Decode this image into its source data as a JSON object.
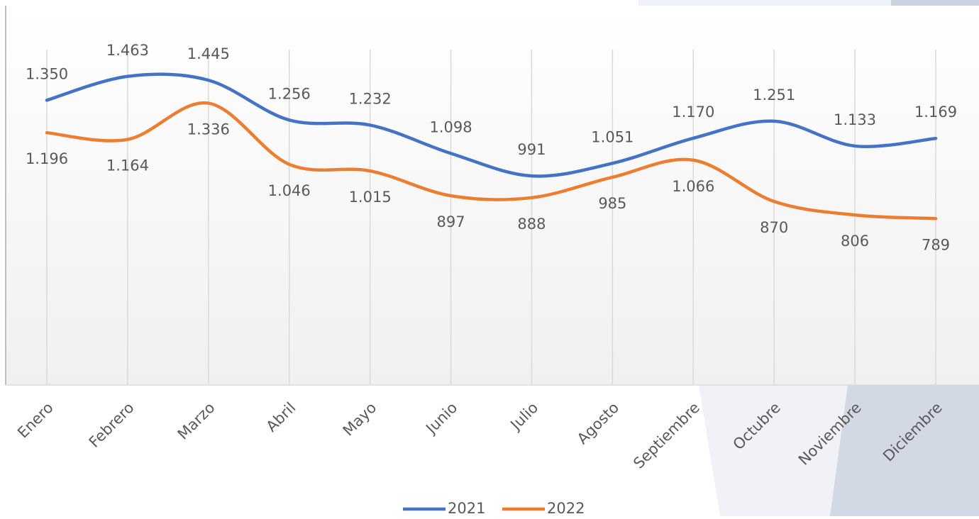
{
  "chart_data": {
    "type": "line",
    "categories": [
      "Enero",
      "Febrero",
      "Marzo",
      "Abril",
      "Mayo",
      "Junio",
      "Julio",
      "Agosto",
      "Septiembre",
      "Octubre",
      "Noviembre",
      "Diciembre"
    ],
    "series": [
      {
        "name": "2021",
        "color": "#4472c4",
        "values": [
          1350,
          1463,
          1445,
          1256,
          1232,
          1098,
          991,
          1051,
          1170,
          1251,
          1133,
          1169
        ],
        "value_labels": [
          "1.350",
          "1.463",
          "1.445",
          "1.256",
          "1.232",
          "1.098",
          "991",
          "1.051",
          "1.170",
          "1.251",
          "1.133",
          "1.169"
        ]
      },
      {
        "name": "2022",
        "color": "#ed7d31",
        "values": [
          1196,
          1164,
          1336,
          1046,
          1015,
          897,
          888,
          985,
          1066,
          870,
          806,
          789
        ],
        "value_labels": [
          "1.196",
          "1.164",
          "1.336",
          "1.046",
          "1.015",
          "897",
          "888",
          "985",
          "1.066",
          "870",
          "806",
          "789"
        ]
      }
    ],
    "ylim": [
      0,
      1600
    ],
    "grid": true,
    "smooth": true,
    "legend": "bottom"
  }
}
